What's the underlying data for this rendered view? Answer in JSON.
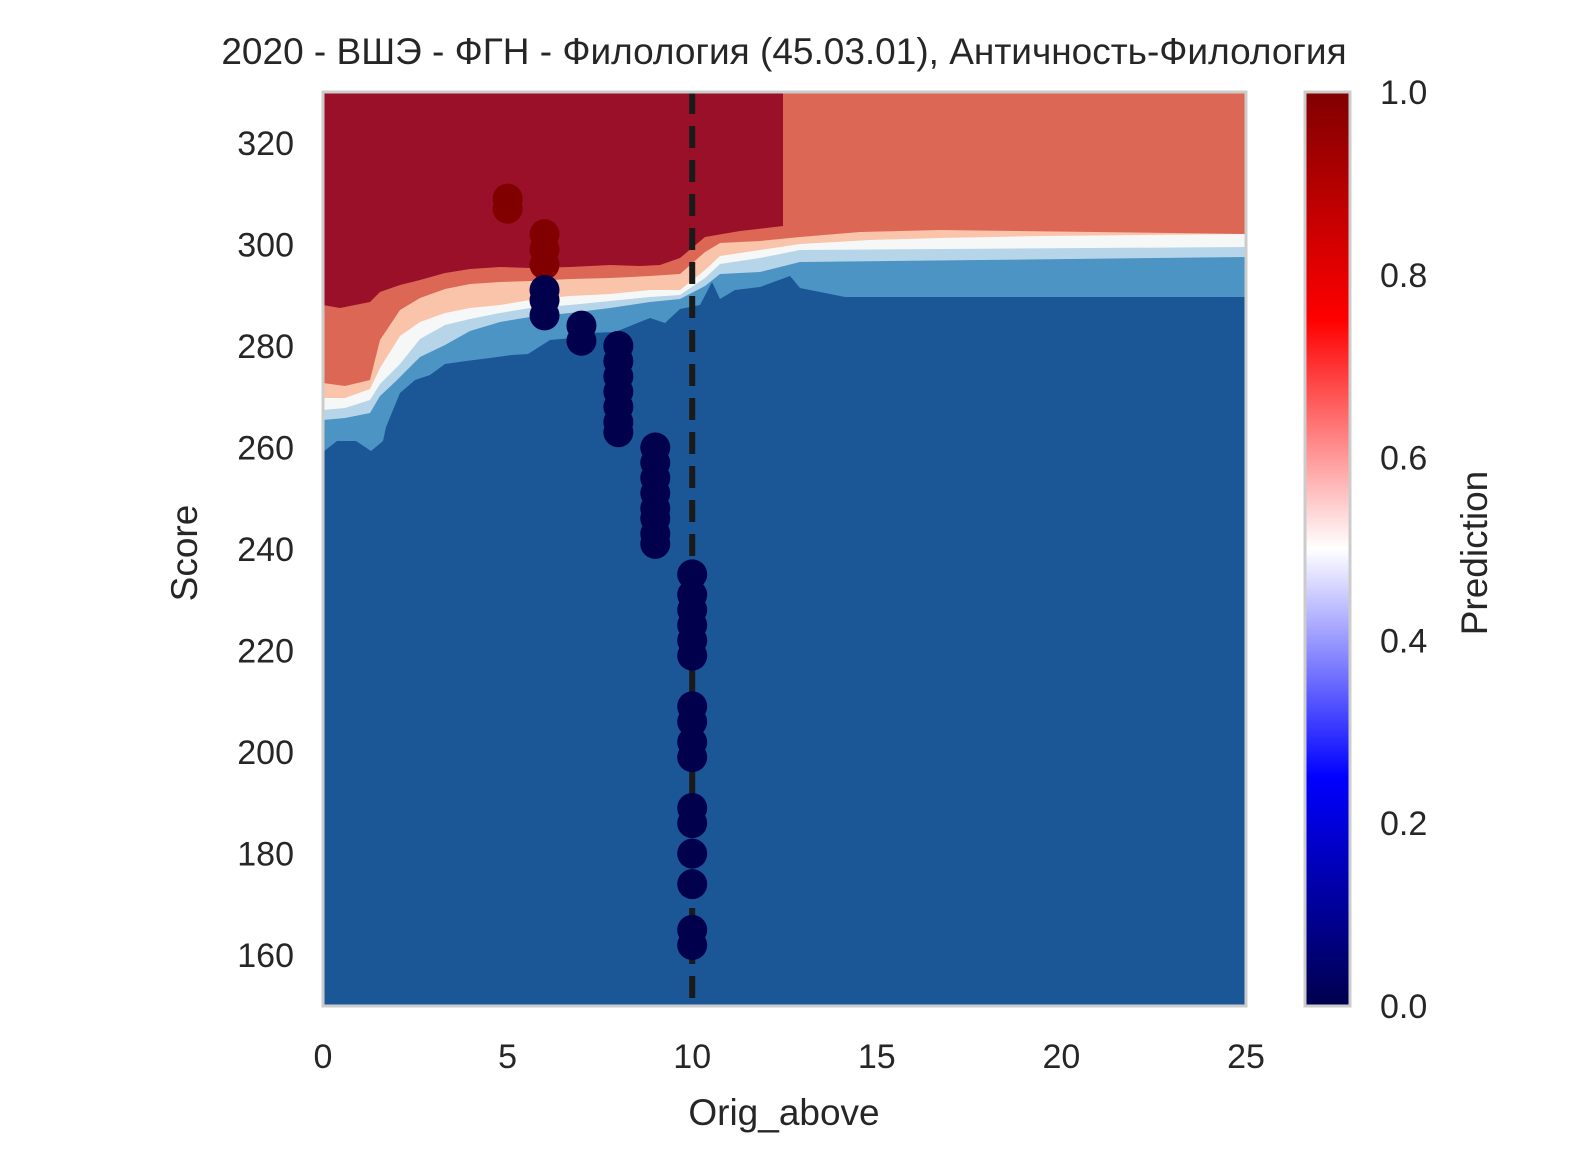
{
  "chart_data": {
    "type": "heatmap",
    "title": "2020 - ВШЭ - ФГН - Филология (45.03.01), Античность-Филология",
    "xlabel": "Orig_above",
    "ylabel": "Score",
    "xlim": [
      0,
      25
    ],
    "ylim": [
      150,
      330
    ],
    "x_ticks": [
      0,
      5,
      10,
      15,
      20,
      25
    ],
    "y_ticks": [
      160,
      180,
      200,
      220,
      240,
      260,
      280,
      300,
      320
    ],
    "grid": false,
    "colorbar": {
      "label": "Prediction",
      "range": [
        0,
        1
      ],
      "ticks": [
        "0.0",
        "0.2",
        "0.4",
        "0.6",
        "0.8",
        "1.0"
      ],
      "colormap": "seismic",
      "colors": [
        "#00004d",
        "#0000ff",
        "#ffffff",
        "#ff0000",
        "#800000"
      ]
    },
    "contour_levels": [
      {
        "range": "0.0-0.2",
        "color": "#1b5796"
      },
      {
        "range": "0.2-0.3",
        "color": "#4c94c4"
      },
      {
        "range": "0.3-0.45",
        "color": "#b7d5e8"
      },
      {
        "range": "0.45-0.55",
        "color": "#f6f7f7"
      },
      {
        "range": "0.55-0.65",
        "color": "#f9c4a9"
      },
      {
        "range": "0.65-0.8",
        "color": "#dc6755"
      },
      {
        "range": "0.8-1.0",
        "color": "#9a1028"
      }
    ],
    "reference_line": {
      "axis": "x",
      "value": 10,
      "style": "dashed",
      "color": "#1a1a1a"
    },
    "series": [
      {
        "x": 5,
        "points": [
          {
            "y": 307,
            "p": 1
          },
          {
            "y": 309,
            "p": 1
          }
        ]
      },
      {
        "x": 6,
        "points": [
          {
            "y": 302,
            "p": 1
          },
          {
            "y": 299,
            "p": 1
          },
          {
            "y": 296,
            "p": 1
          },
          {
            "y": 291,
            "p": 0
          },
          {
            "y": 289,
            "p": 0
          },
          {
            "y": 286,
            "p": 0
          }
        ]
      },
      {
        "x": 7,
        "points": [
          {
            "y": 284,
            "p": 0
          },
          {
            "y": 281,
            "p": 0
          }
        ]
      },
      {
        "x": 8,
        "points": [
          {
            "y": 280,
            "p": 0
          },
          {
            "y": 277,
            "p": 0
          },
          {
            "y": 274,
            "p": 0
          },
          {
            "y": 271,
            "p": 0
          },
          {
            "y": 268,
            "p": 0
          },
          {
            "y": 265,
            "p": 0
          },
          {
            "y": 263,
            "p": 0
          }
        ]
      },
      {
        "x": 9,
        "points": [
          {
            "y": 260,
            "p": 0
          },
          {
            "y": 257,
            "p": 0
          },
          {
            "y": 254,
            "p": 0
          },
          {
            "y": 251,
            "p": 0
          },
          {
            "y": 248,
            "p": 0
          },
          {
            "y": 246,
            "p": 0
          },
          {
            "y": 243,
            "p": 0
          },
          {
            "y": 241,
            "p": 0
          }
        ]
      },
      {
        "x": 10,
        "points": [
          {
            "y": 235,
            "p": 0
          },
          {
            "y": 231,
            "p": 0
          },
          {
            "y": 228,
            "p": 0
          },
          {
            "y": 225,
            "p": 0
          },
          {
            "y": 222,
            "p": 0
          },
          {
            "y": 219,
            "p": 0
          },
          {
            "y": 209,
            "p": 0
          },
          {
            "y": 206,
            "p": 0
          },
          {
            "y": 202,
            "p": 0
          },
          {
            "y": 199,
            "p": 0
          },
          {
            "y": 189,
            "p": 0
          },
          {
            "y": 186,
            "p": 0
          },
          {
            "y": 180,
            "p": 0
          },
          {
            "y": 174,
            "p": 0
          },
          {
            "y": 165,
            "p": 0
          },
          {
            "y": 162,
            "p": 0
          }
        ]
      }
    ]
  }
}
